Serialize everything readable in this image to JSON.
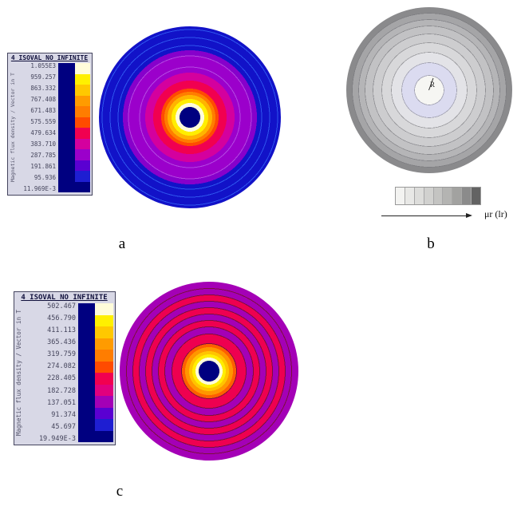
{
  "page": {
    "background": "#ffffff"
  },
  "figures": {
    "a": {
      "label": "a",
      "legend": {
        "title": "4_ISOVAL_NO_INFINITE",
        "axis_label": "Magnetic flux density / Vector in T",
        "values": [
          "1.055E3",
          "959.257",
          "863.332",
          "767.408",
          "671.483",
          "575.559",
          "479.634",
          "383.710",
          "287.785",
          "191.861",
          "95.936",
          "11.969E-3"
        ],
        "bar_background": "#000080",
        "bar_colors": [
          "#fffcda",
          "#fff000",
          "#ffc800",
          "#ff9b00",
          "#ff7d00",
          "#ff4b00",
          "#f10050",
          "#d4009e",
          "#9b00cb",
          "#5a00d2",
          "#1e1ed2",
          "#000080"
        ]
      },
      "plot": {
        "rings": [
          [
            13,
            "#000080"
          ],
          [
            18,
            "#fffcda"
          ],
          [
            23,
            "#ffee00"
          ],
          [
            28,
            "#ffb400"
          ],
          [
            32,
            "#ff7d00"
          ],
          [
            36,
            "#ff4b00"
          ],
          [
            46,
            "#f10050"
          ],
          [
            56,
            "#d4009e"
          ],
          [
            62.5,
            "#9b00cb"
          ],
          [
            63.5,
            "#b448e2"
          ],
          [
            76.5,
            "#9b00cb"
          ],
          [
            77.5,
            "#b448e2"
          ],
          [
            84,
            "#8700cb"
          ],
          [
            89.5,
            "#1212c8"
          ],
          [
            90.5,
            "#2e55ee"
          ],
          [
            99.5,
            "#1212c8"
          ],
          [
            100.5,
            "#2e55ee"
          ],
          [
            109.5,
            "#1212c8"
          ],
          [
            110.5,
            "#2e55ee"
          ],
          [
            114,
            "#1212c8"
          ]
        ]
      }
    },
    "b": {
      "label": "b",
      "center_label": "R",
      "colorbar_label": "μr (lr)",
      "colorbar_colors": [
        "#f3f3f1",
        "#e8e8e6",
        "#dddddb",
        "#d1d1cf",
        "#c4c4c2",
        "#b4b4b2",
        "#a2a2a0",
        "#8b8b8b",
        "#636363"
      ],
      "plot": {
        "rings": [
          [
            18,
            "#f6f6f3"
          ],
          [
            18.8,
            "#a0a0b0"
          ],
          [
            34,
            "#dbdbf0"
          ],
          [
            34.8,
            "#a0a0b0"
          ],
          [
            47,
            "#e3e3e7"
          ],
          [
            47.8,
            "#9a9a9e"
          ],
          [
            59,
            "#d8d8da"
          ],
          [
            59.8,
            "#96969a"
          ],
          [
            70,
            "#cdcdcf"
          ],
          [
            70.8,
            "#909094"
          ],
          [
            80,
            "#c2c2c4"
          ],
          [
            80.8,
            "#8a8a8e"
          ],
          [
            88,
            "#b5b5b7"
          ],
          [
            88.8,
            "#848488"
          ],
          [
            96,
            "#a5a5a7"
          ],
          [
            96.8,
            "#7e7e82"
          ],
          [
            104,
            "#8a8a8c"
          ]
        ]
      }
    },
    "c": {
      "label": "c",
      "legend": {
        "title": "4_ISOVAL_NO_INFINITE",
        "axis_label": "Magnetic flux density / Vector in T",
        "values": [
          "502.467",
          "456.790",
          "411.113",
          "365.436",
          "319.759",
          "274.082",
          "228.405",
          "182.728",
          "137.051",
          "91.374",
          "45.697",
          "19.949E-3"
        ],
        "bar_background": "#000080",
        "bar_colors": [
          "#fffcda",
          "#fff000",
          "#ffc800",
          "#ff9b00",
          "#ff7d00",
          "#ff4b00",
          "#f10050",
          "#e1007e",
          "#a400b6",
          "#5a00d2",
          "#1e1ed2",
          "#000080"
        ]
      },
      "plot": {
        "rings": [
          [
            13,
            "#000080"
          ],
          [
            17,
            "#fffcda"
          ],
          [
            21,
            "#ffee00"
          ],
          [
            25,
            "#ffc400"
          ],
          [
            30,
            "#ff9600"
          ],
          [
            34,
            "#ff5f00"
          ],
          [
            35,
            "#7c0f3c"
          ],
          [
            46,
            "#ee0050"
          ],
          [
            47,
            "#7c0f3c"
          ],
          [
            55,
            "#a400b6"
          ],
          [
            56,
            "#7c0f3c"
          ],
          [
            63,
            "#ee0050"
          ],
          [
            64,
            "#7c0f3c"
          ],
          [
            71,
            "#a400b6"
          ],
          [
            72,
            "#7c0f3c"
          ],
          [
            79,
            "#ee0050"
          ],
          [
            80,
            "#7c0f3c"
          ],
          [
            87,
            "#a400b6"
          ],
          [
            88,
            "#7c0f3c"
          ],
          [
            95,
            "#ee0050"
          ],
          [
            96,
            "#7c0f3c"
          ],
          [
            103,
            "#a400b6"
          ],
          [
            104,
            "#7c0f3c"
          ],
          [
            112,
            "#a400b6"
          ]
        ]
      }
    }
  }
}
